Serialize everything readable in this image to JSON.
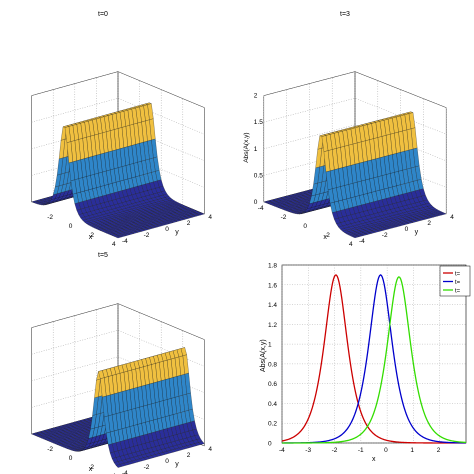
{
  "colors": {
    "surface_low": "#2a2e9a",
    "surface_mid": "#2f86c9",
    "surface_high": "#f0c040",
    "surface_edge": "#1a1a1a",
    "line_red": "#cc0000",
    "line_blue": "#0000cc",
    "line_green": "#33dd00"
  },
  "chart_data": [
    {
      "type": "surface",
      "panel": "top-left",
      "title": "t=0",
      "xlabel": "x",
      "ylabel": "y",
      "zlabel": "",
      "x_ticks": [
        "-2",
        "0",
        "2",
        "4"
      ],
      "y_ticks": [
        "-4",
        "-2",
        "0",
        "2",
        "4"
      ],
      "z_ticks": [],
      "zlim": [
        0,
        2
      ]
    },
    {
      "type": "surface",
      "panel": "top-right",
      "title": "t=3",
      "xlabel": "x",
      "ylabel": "y",
      "zlabel": "Abs(A(x,y)",
      "x_ticks": [
        "-4",
        "-2",
        "0",
        "2",
        "4"
      ],
      "y_ticks": [
        "-4",
        "-2",
        "0",
        "2",
        "4"
      ],
      "z_ticks": [
        "0",
        "0.5",
        "1",
        "1.5",
        "2"
      ],
      "zlim": [
        0,
        2
      ]
    },
    {
      "type": "surface",
      "panel": "bottom-left",
      "title": "t=5",
      "xlabel": "x",
      "ylabel": "y",
      "zlabel": "",
      "x_ticks": [
        "-2",
        "0",
        "2",
        "4"
      ],
      "y_ticks": [
        "-4",
        "-2",
        "0",
        "2",
        "4"
      ],
      "z_ticks": [],
      "zlim": [
        0,
        2
      ]
    },
    {
      "type": "line",
      "panel": "bottom-right",
      "title": "",
      "xlabel": "x",
      "ylabel": "Abs(A(x,y)",
      "xlim": [
        -4,
        3
      ],
      "ylim": [
        0,
        1.8
      ],
      "x_ticks": [
        "-4",
        "-3",
        "-2",
        "-1",
        "0",
        "1",
        "2"
      ],
      "y_ticks": [
        "0",
        "0.2",
        "0.4",
        "0.6",
        "0.8",
        "1",
        "1.2",
        "1.4",
        "1.6",
        "1.8"
      ],
      "grid": true,
      "legend": "top-right",
      "series": [
        {
          "name": "t=",
          "color": "#cc0000",
          "peak_x": -1.95,
          "peak_y": 1.7,
          "width": 0.4
        },
        {
          "name": "t=",
          "color": "#0000cc",
          "peak_x": -0.25,
          "peak_y": 1.7,
          "width": 0.4
        },
        {
          "name": "t=",
          "color": "#33dd00",
          "peak_x": 0.45,
          "peak_y": 1.68,
          "width": 0.4
        }
      ]
    }
  ]
}
